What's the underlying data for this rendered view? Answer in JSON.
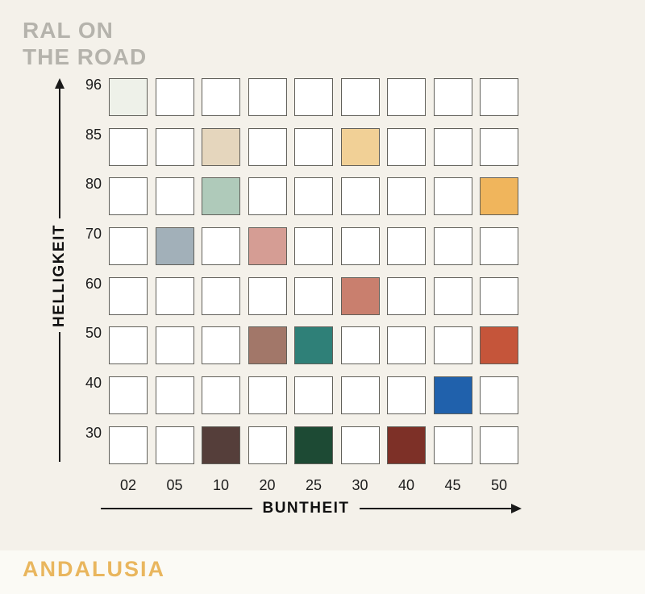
{
  "page": {
    "background": "#f4f1ea",
    "footer_background": "#fbfaf5"
  },
  "header": {
    "title": "RAL ON\nTHE ROAD",
    "title_color": "#b5b3ac"
  },
  "footer": {
    "label": "ANDALUSIA",
    "label_color": "#e9b65e"
  },
  "chart_data": {
    "type": "heatmap",
    "title": "RAL ON THE ROAD",
    "subtitle": "ANDALUSIA",
    "xlabel": "BUNTHEIT",
    "ylabel": "HELLIGKEIT",
    "x_categories": [
      "02",
      "05",
      "10",
      "20",
      "25",
      "30",
      "40",
      "45",
      "50"
    ],
    "y_categories": [
      "96",
      "85",
      "80",
      "70",
      "60",
      "50",
      "40",
      "30"
    ],
    "grid_on": true,
    "empty_cell_color": "#ffffff",
    "cell_border_color": "#61605a",
    "axis_color": "#1a1a1a",
    "filled_cells": [
      {
        "helligkeit": "96",
        "buntheit": "02",
        "color": "#eef1e9"
      },
      {
        "helligkeit": "85",
        "buntheit": "10",
        "color": "#e5d6bd"
      },
      {
        "helligkeit": "85",
        "buntheit": "30",
        "color": "#f1d096"
      },
      {
        "helligkeit": "80",
        "buntheit": "10",
        "color": "#afcaba"
      },
      {
        "helligkeit": "80",
        "buntheit": "50",
        "color": "#f0b55c"
      },
      {
        "helligkeit": "70",
        "buntheit": "05",
        "color": "#a2b0b9"
      },
      {
        "helligkeit": "70",
        "buntheit": "20",
        "color": "#d59d94"
      },
      {
        "helligkeit": "60",
        "buntheit": "30",
        "color": "#c97f6e"
      },
      {
        "helligkeit": "50",
        "buntheit": "20",
        "color": "#a27769"
      },
      {
        "helligkeit": "50",
        "buntheit": "25",
        "color": "#2f8078"
      },
      {
        "helligkeit": "50",
        "buntheit": "50",
        "color": "#c5553a"
      },
      {
        "helligkeit": "40",
        "buntheit": "45",
        "color": "#2061ac"
      },
      {
        "helligkeit": "30",
        "buntheit": "10",
        "color": "#553e3a"
      },
      {
        "helligkeit": "30",
        "buntheit": "25",
        "color": "#1d4a34"
      },
      {
        "helligkeit": "30",
        "buntheit": "40",
        "color": "#7d3027"
      }
    ]
  }
}
